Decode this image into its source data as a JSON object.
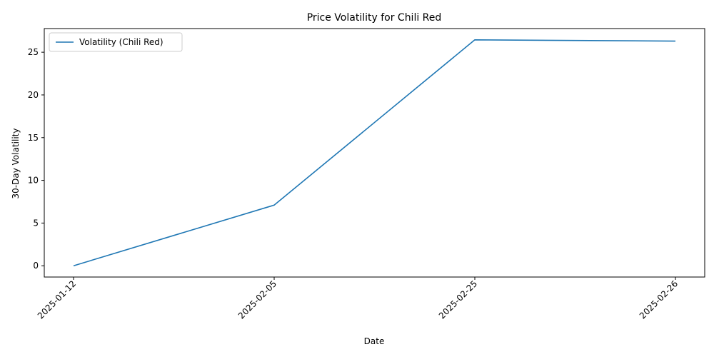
{
  "chart_data": {
    "type": "line",
    "title": "Price Volatility for Chili Red",
    "xlabel": "Date",
    "ylabel": "30-Day Volatility",
    "x": [
      "2025-01-12",
      "2025-02-05",
      "2025-02-25",
      "2025-02-26"
    ],
    "series": [
      {
        "name": "Volatility (Chili Red)",
        "color": "#1f77b4",
        "values": [
          0.0,
          7.1,
          26.45,
          26.3
        ]
      }
    ],
    "yticks": [
      0,
      5,
      10,
      15,
      20,
      25
    ],
    "ytick_labels": [
      "0",
      "5",
      "10",
      "15",
      "20",
      "25"
    ],
    "ylim": [
      -1.32,
      27.77
    ],
    "x_tick_rotation_deg": 45,
    "grid": false,
    "legend_position": "upper left"
  }
}
